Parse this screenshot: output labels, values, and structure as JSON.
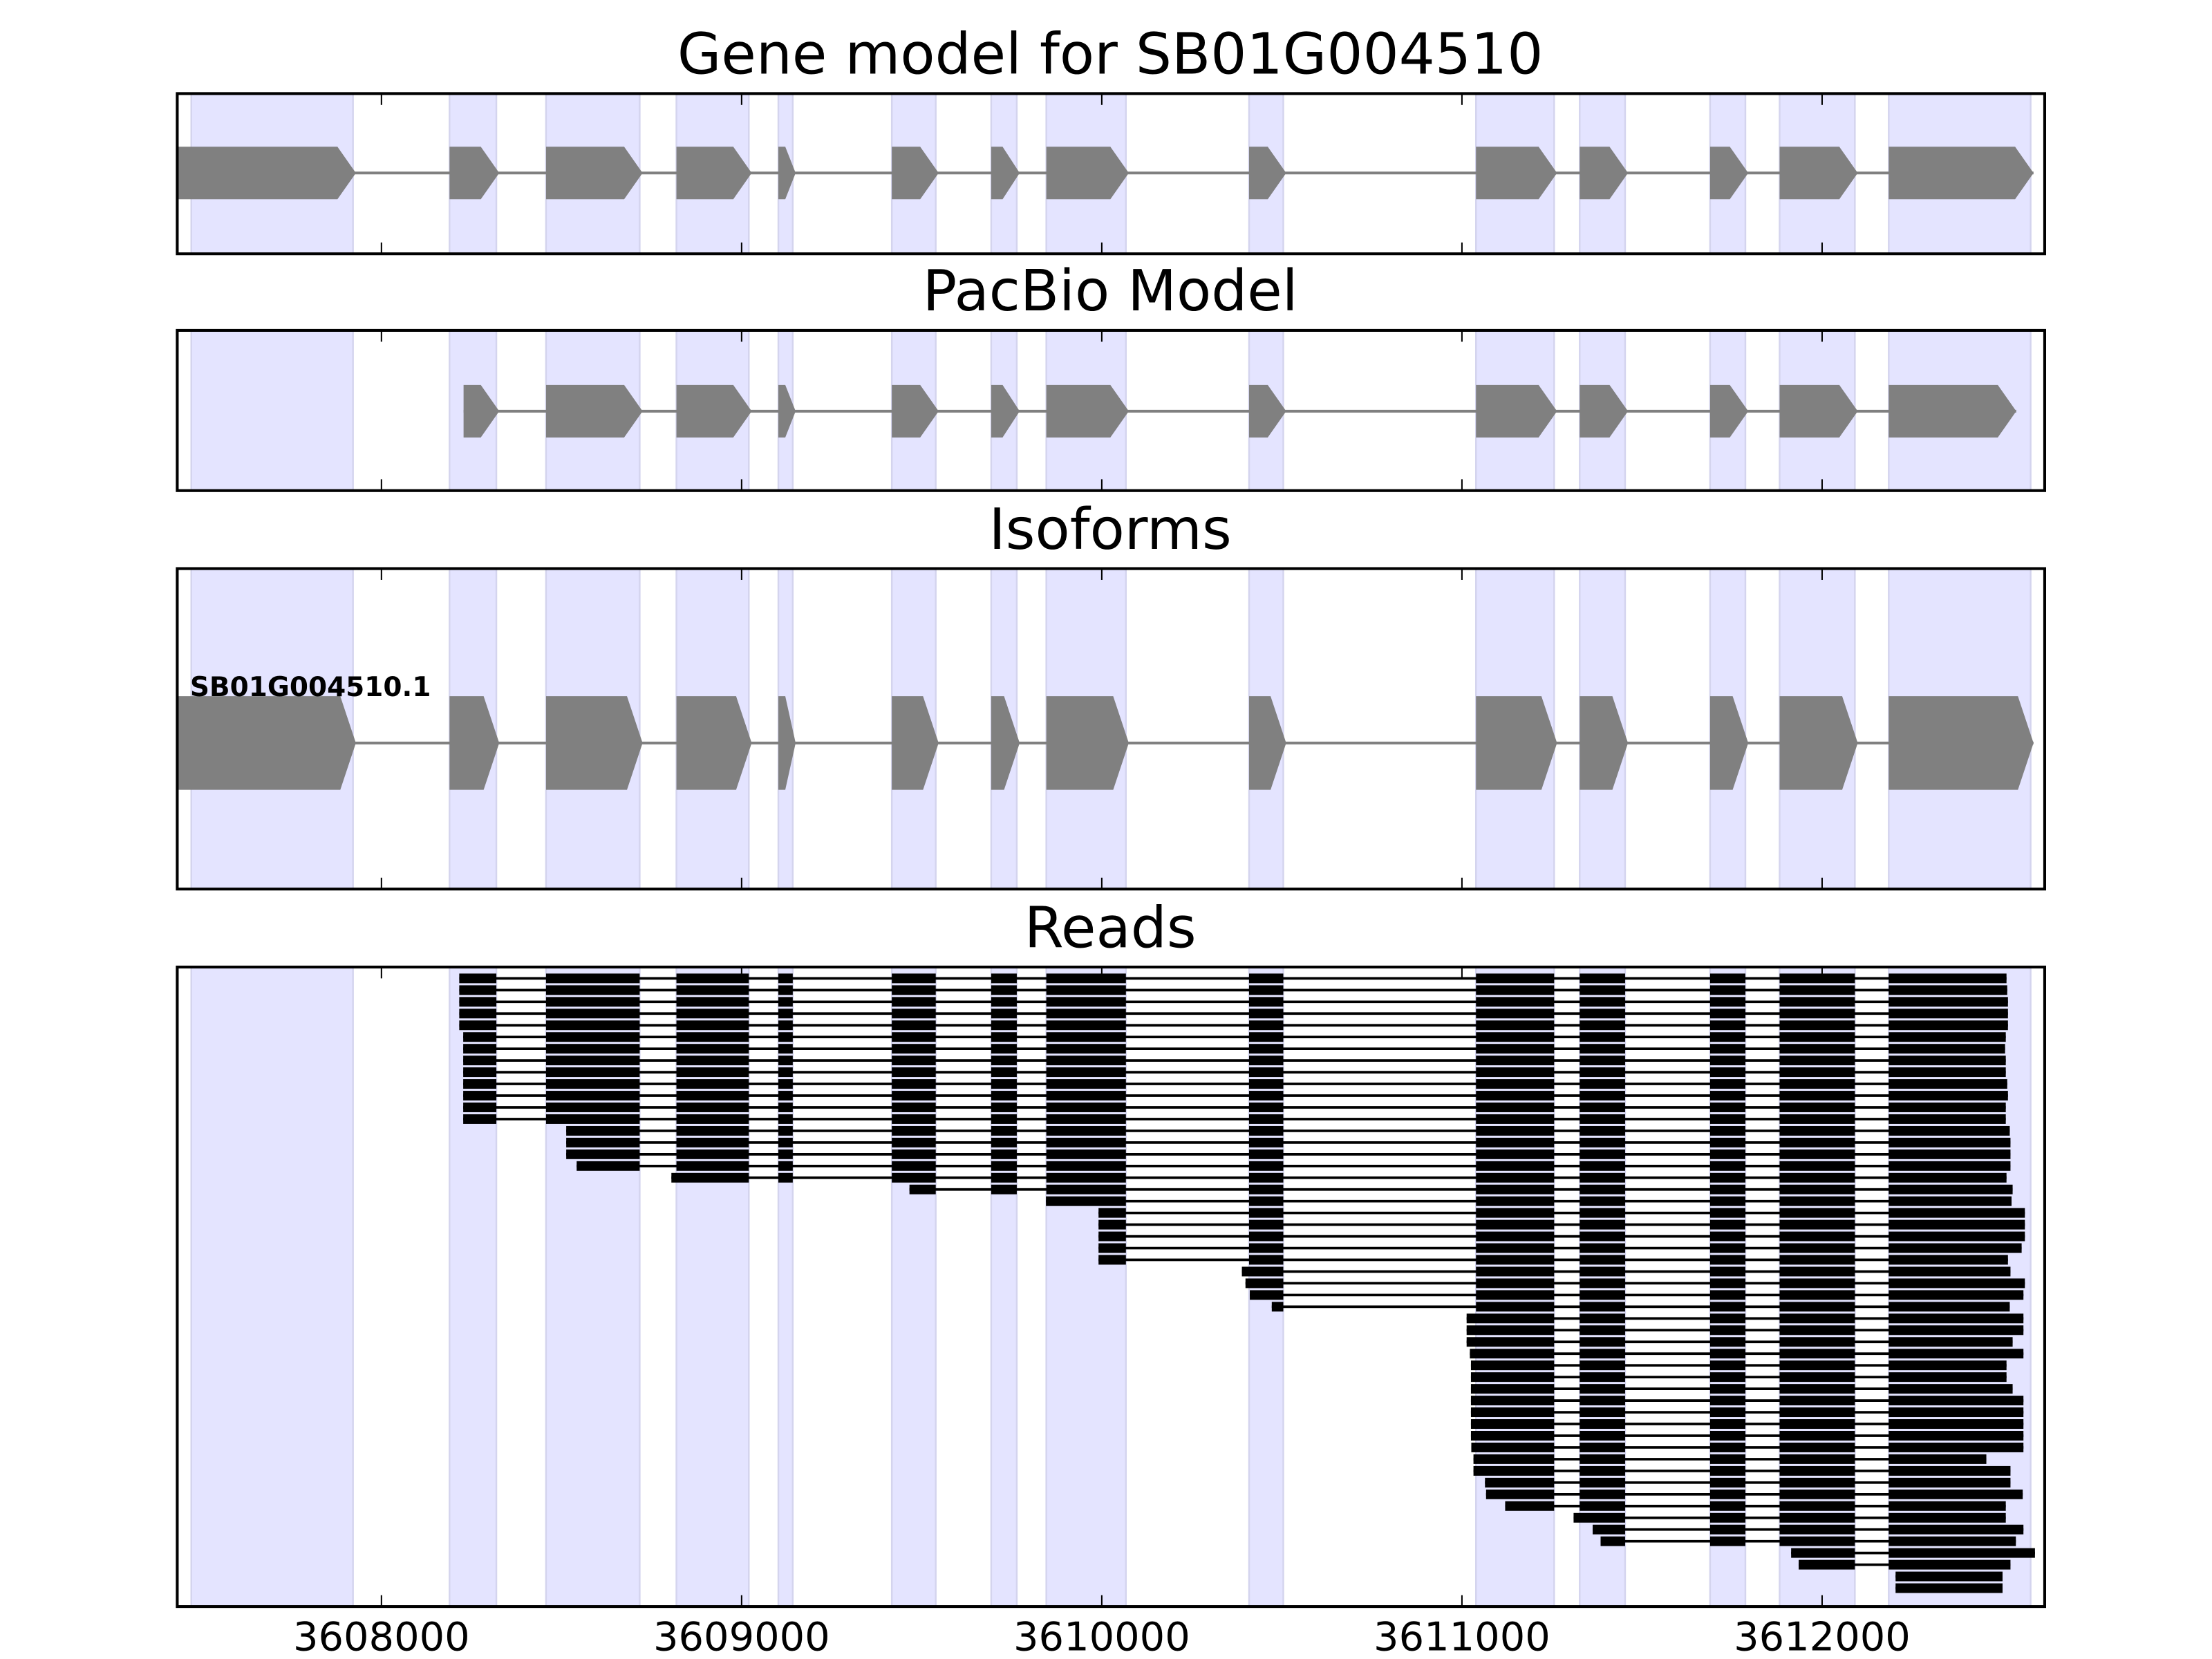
{
  "chart_data": {
    "type": "gene-track",
    "xlim": [
      3607433,
      3612618
    ],
    "xticks": [
      3608000,
      3609000,
      3610000,
      3611000,
      3612000
    ],
    "xtick_labels": [
      "3608000",
      "3609000",
      "3610000",
      "3611000",
      "3612000"
    ],
    "colors": {
      "exon_highlight": "#e4e4ff",
      "highlight_edge": "#d4d4ee",
      "model_exon": "#808080",
      "intron": "#808080",
      "read": "#000000"
    },
    "exon_regions": [
      [
        3607472,
        3607921
      ],
      [
        3608189,
        3608319
      ],
      [
        3608457,
        3608717
      ],
      [
        3608819,
        3609020
      ],
      [
        3609102,
        3609142
      ],
      [
        3609417,
        3609539
      ],
      [
        3609693,
        3609764
      ],
      [
        3609846,
        3610067
      ],
      [
        3610409,
        3610504
      ],
      [
        3611039,
        3611256
      ],
      [
        3611327,
        3611453
      ],
      [
        3611689,
        3611787
      ],
      [
        3611882,
        3612091
      ],
      [
        3612185,
        3612579
      ]
    ],
    "panels": [
      {
        "title": "Gene model for SB01G004510",
        "kind": "model",
        "exons": [
          [
            3607433,
            3607929
          ],
          [
            3608189,
            3608327
          ],
          [
            3608457,
            3608725
          ],
          [
            3608819,
            3609028
          ],
          [
            3609102,
            3609150
          ],
          [
            3609417,
            3609547
          ],
          [
            3609693,
            3609772
          ],
          [
            3609846,
            3610075
          ],
          [
            3610409,
            3610512
          ],
          [
            3611039,
            3611264
          ],
          [
            3611327,
            3611461
          ],
          [
            3611689,
            3611795
          ],
          [
            3611882,
            3612099
          ],
          [
            3612185,
            3612587
          ]
        ]
      },
      {
        "title": "PacBio Model",
        "kind": "model",
        "exons": [
          [
            3608228,
            3608327
          ],
          [
            3608457,
            3608725
          ],
          [
            3608819,
            3609028
          ],
          [
            3609102,
            3609150
          ],
          [
            3609417,
            3609547
          ],
          [
            3609693,
            3609772
          ],
          [
            3609846,
            3610075
          ],
          [
            3610409,
            3610512
          ],
          [
            3611039,
            3611264
          ],
          [
            3611327,
            3611461
          ],
          [
            3611689,
            3611795
          ],
          [
            3611882,
            3612099
          ],
          [
            3612185,
            3612539
          ]
        ]
      },
      {
        "title": "Isoforms",
        "kind": "isoform",
        "isoform_label": "SB01G004510.1",
        "exons": [
          [
            3607433,
            3607929
          ],
          [
            3608189,
            3608327
          ],
          [
            3608457,
            3608725
          ],
          [
            3608819,
            3609028
          ],
          [
            3609102,
            3609150
          ],
          [
            3609417,
            3609547
          ],
          [
            3609693,
            3609772
          ],
          [
            3609846,
            3610075
          ],
          [
            3610409,
            3610512
          ],
          [
            3611039,
            3611264
          ],
          [
            3611327,
            3611461
          ],
          [
            3611689,
            3611795
          ],
          [
            3611882,
            3612099
          ],
          [
            3612185,
            3612587
          ]
        ]
      },
      {
        "title": "Reads",
        "kind": "reads"
      }
    ],
    "reads": [
      [
        3608216,
        3612512
      ],
      [
        3608216,
        3612514
      ],
      [
        3608216,
        3612516
      ],
      [
        3608216,
        3612516
      ],
      [
        3608216,
        3612516
      ],
      [
        3608227,
        3612510
      ],
      [
        3608227,
        3612508
      ],
      [
        3608227,
        3612510
      ],
      [
        3608227,
        3612510
      ],
      [
        3608227,
        3612514
      ],
      [
        3608227,
        3612516
      ],
      [
        3608227,
        3612510
      ],
      [
        3608227,
        3612510
      ],
      [
        3608513,
        3612521
      ],
      [
        3608513,
        3612523
      ],
      [
        3608513,
        3612523
      ],
      [
        3608542,
        3612523
      ],
      [
        3608805,
        3612512
      ],
      [
        3609466,
        3612529
      ],
      [
        3609845,
        3612526
      ],
      [
        3609991,
        3612563
      ],
      [
        3609991,
        3612563
      ],
      [
        3609991,
        3612563
      ],
      [
        3609991,
        3612554
      ],
      [
        3609991,
        3612516
      ],
      [
        3610389,
        3612523
      ],
      [
        3610399,
        3612563
      ],
      [
        3610411,
        3612559
      ],
      [
        3610472,
        3612521
      ],
      [
        3611013,
        3612559
      ],
      [
        3611013,
        3612559
      ],
      [
        3611013,
        3612529
      ],
      [
        3611022,
        3612559
      ],
      [
        3611025,
        3612512
      ],
      [
        3611025,
        3612512
      ],
      [
        3611025,
        3612529
      ],
      [
        3611025,
        3612559
      ],
      [
        3611025,
        3612559
      ],
      [
        3611025,
        3612559
      ],
      [
        3611025,
        3612559
      ],
      [
        3611026,
        3612559
      ],
      [
        3611032,
        3612456
      ],
      [
        3611032,
        3612523
      ],
      [
        3611064,
        3612523
      ],
      [
        3611067,
        3612557
      ],
      [
        3611120,
        3612510
      ],
      [
        3611310,
        3612510
      ],
      [
        3611363,
        3612559
      ],
      [
        3611385,
        3612538
      ],
      [
        3611914,
        3612591
      ],
      [
        3611935,
        3612523
      ],
      [
        3612204,
        3612501
      ],
      [
        3612204,
        3612501
      ]
    ]
  }
}
